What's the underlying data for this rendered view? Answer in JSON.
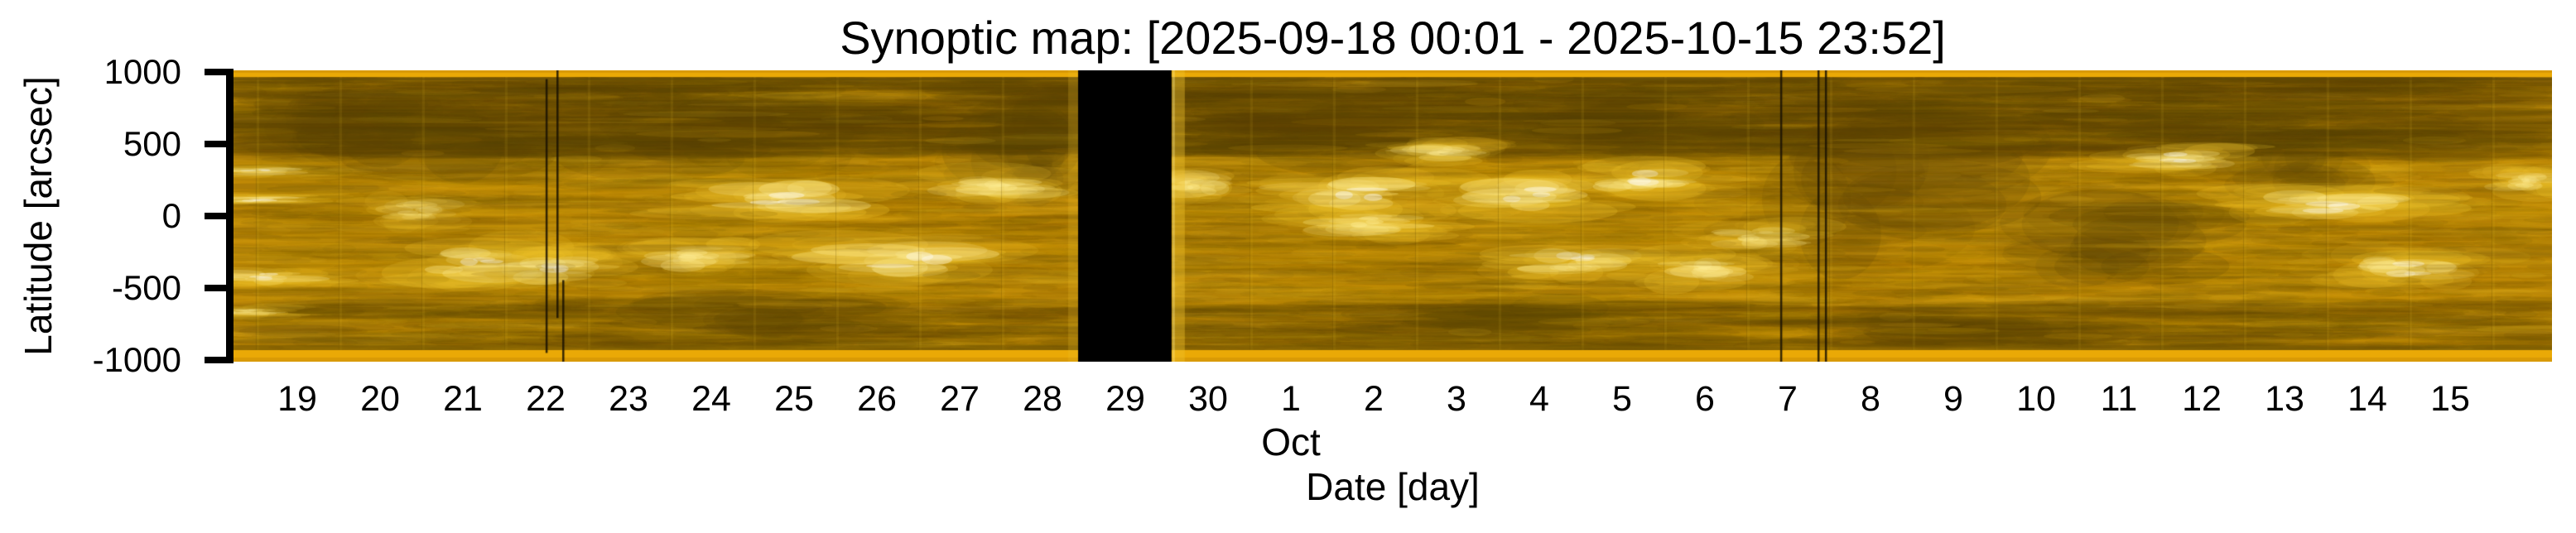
{
  "title": "Synoptic map: [2025-09-18 00:01 - 2025-10-15 23:52]",
  "axes": {
    "y": {
      "label": "Latitude [arcsec]",
      "tick_labels": [
        "1000",
        "500",
        "0",
        "-500",
        "-1000"
      ],
      "tick_values": [
        1000,
        500,
        0,
        -500,
        -1000
      ],
      "range": [
        -1010,
        1010
      ]
    },
    "x": {
      "label": "Date [day]",
      "month_label": "Oct",
      "month_label_tick_index": 12,
      "tick_labels": [
        "19",
        "20",
        "21",
        "22",
        "23",
        "24",
        "25",
        "26",
        "27",
        "28",
        "29",
        "30",
        "1",
        "2",
        "3",
        "4",
        "5",
        "6",
        "7",
        "8",
        "9",
        "10",
        "11",
        "12",
        "13",
        "14",
        "15"
      ],
      "start": "2025-09-18 00:01",
      "end": "2025-10-15 23:52"
    }
  },
  "chart_data": {
    "type": "heatmap",
    "title": "Synoptic map: [2025-09-18 00:01 - 2025-10-15 23:52]",
    "xlabel": "Date [day]",
    "ylabel": "Latitude [arcsec]",
    "x_range": [
      "2025-09-18 00:01",
      "2025-10-15 23:52"
    ],
    "x_tick_days": [
      19,
      20,
      21,
      22,
      23,
      24,
      25,
      26,
      27,
      28,
      29,
      30,
      1,
      2,
      3,
      4,
      5,
      6,
      7,
      8,
      9,
      10,
      11,
      12,
      13,
      14,
      15
    ],
    "ylim": [
      -1010,
      1010
    ],
    "y_ticks": [
      1000,
      500,
      0,
      -500,
      -1000
    ],
    "colormap": "gold solar EUV (AIA-171-like)",
    "grid": false,
    "legend": "none",
    "data_gap": {
      "x_frac_start": 0.3643,
      "x_frac_end": 0.4046,
      "days": "Sep 28.4 - Sep 29.6",
      "color": "#000000"
    },
    "artifact_lines": [
      {
        "x_frac": 0.1346,
        "y0_frac": 0.03,
        "y1_frac": 0.97,
        "day": "Sep 22.0"
      },
      {
        "x_frac": 0.1393,
        "y0_frac": 0.0,
        "y1_frac": 0.85,
        "day": "Sep 22.1"
      },
      {
        "x_frac": 0.1418,
        "y0_frac": 0.72,
        "y1_frac": 1.0,
        "day": "Sep 22.2"
      },
      {
        "x_frac": 0.6671,
        "y0_frac": 0.0,
        "y1_frac": 1.0,
        "day": "Oct 6.9"
      },
      {
        "x_frac": 0.6832,
        "y0_frac": 0.0,
        "y1_frac": 1.0,
        "day": "Oct 7.4"
      },
      {
        "x_frac": 0.6864,
        "y0_frac": 0.0,
        "y1_frac": 1.0,
        "day": "Oct 7.45"
      }
    ],
    "bright_regions": [
      [
        0.011,
        310,
        55,
        7,
        0.85
      ],
      [
        0.012,
        115,
        70,
        6,
        1.0
      ],
      [
        0.013,
        -420,
        70,
        12,
        0.9
      ],
      [
        0.005,
        -660,
        45,
        8,
        0.8
      ],
      [
        0.079,
        30,
        55,
        18,
        0.65
      ],
      [
        0.107,
        -335,
        85,
        30,
        0.9
      ],
      [
        0.141,
        -365,
        60,
        22,
        0.85
      ],
      [
        0.2,
        -280,
        75,
        22,
        0.75
      ],
      [
        0.236,
        120,
        95,
        26,
        0.95
      ],
      [
        0.293,
        -310,
        120,
        28,
        0.9
      ],
      [
        0.329,
        205,
        75,
        22,
        0.8
      ],
      [
        0.414,
        205,
        55,
        22,
        0.8
      ],
      [
        0.485,
        155,
        100,
        26,
        1.0
      ],
      [
        0.49,
        -45,
        70,
        20,
        0.8
      ],
      [
        0.521,
        435,
        55,
        16,
        0.75
      ],
      [
        0.557,
        150,
        85,
        26,
        0.9
      ],
      [
        0.579,
        -310,
        75,
        24,
        0.85
      ],
      [
        0.607,
        265,
        65,
        22,
        0.85
      ],
      [
        0.632,
        -365,
        65,
        22,
        0.8
      ],
      [
        0.657,
        -140,
        60,
        20,
        0.7
      ],
      [
        0.836,
        405,
        70,
        18,
        0.85
      ],
      [
        0.907,
        65,
        95,
        24,
        0.9
      ],
      [
        0.939,
        -365,
        75,
        24,
        0.85
      ],
      [
        0.989,
        235,
        45,
        18,
        0.8
      ]
    ],
    "dark_regions": [
      [
        0.057,
        650,
        90,
        40
      ],
      [
        0.107,
        550,
        130,
        55
      ],
      [
        0.21,
        555,
        120,
        48
      ],
      [
        0.341,
        495,
        65,
        65
      ],
      [
        0.461,
        610,
        110,
        42
      ],
      [
        0.61,
        640,
        120,
        40
      ],
      [
        0.707,
        210,
        130,
        85
      ],
      [
        0.821,
        -135,
        110,
        55
      ],
      [
        0.886,
        325,
        80,
        45
      ],
      [
        0.25,
        -710,
        150,
        26
      ],
      [
        0.536,
        -710,
        140,
        22
      ],
      [
        0.75,
        -770,
        130,
        22
      ]
    ],
    "palette": {
      "base": "#c08a06",
      "dark1": "#6e5204",
      "dark2": "#5a4305",
      "light1": "#d8a20e",
      "light2": "#f0c42c",
      "hot": "#ffee96",
      "core": "#ffffff",
      "edge_stripe": "#eaa906",
      "edge_stripe2": "#d99a05",
      "gap": "#000000"
    }
  }
}
